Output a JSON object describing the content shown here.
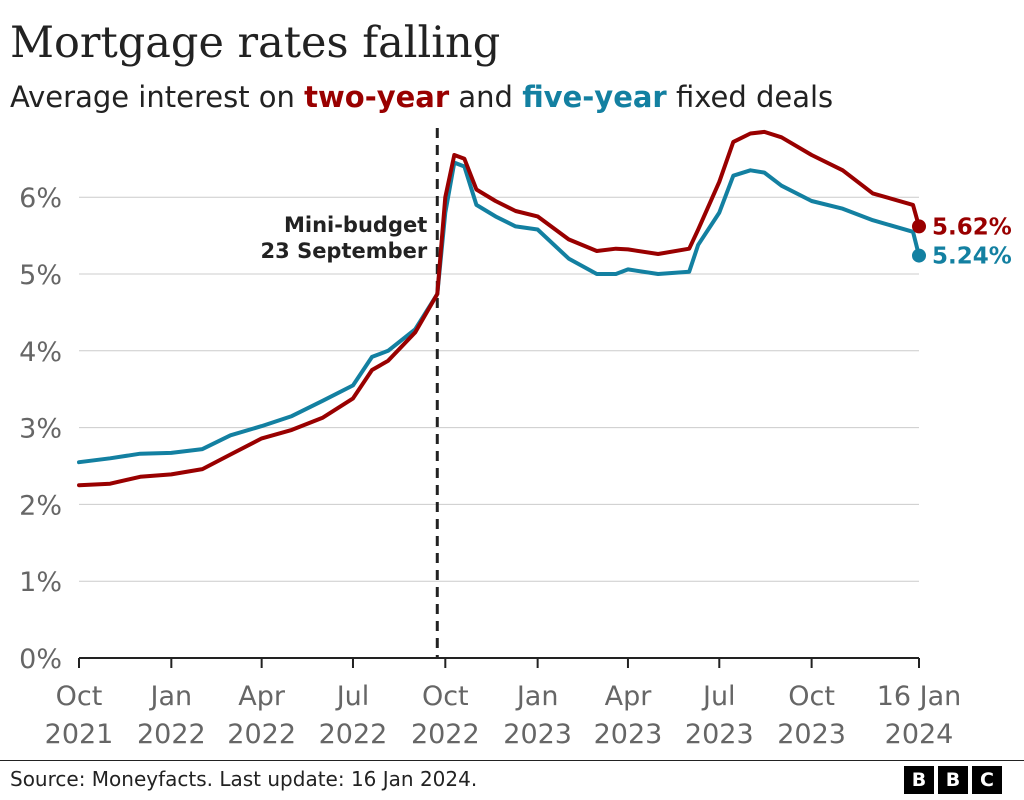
{
  "title": "Mortgage rates falling",
  "subtitle": {
    "prefix": "Average interest on ",
    "two_year": "two-year",
    "middle": " and ",
    "five_year": "five-year",
    "suffix": " fixed deals"
  },
  "source": "Source: Moneyfacts. Last update: 16 Jan 2024.",
  "logo": [
    "B",
    "B",
    "C"
  ],
  "colors": {
    "two_year": "#990000",
    "five_year": "#1380A1",
    "grid": "#cccccc",
    "axis": "#222222",
    "tick_text": "#666666"
  },
  "chart_data": {
    "type": "line",
    "title": "Mortgage rates falling",
    "ylim": [
      0,
      6.8
    ],
    "y_ticks": [
      {
        "v": 0,
        "label": "0%"
      },
      {
        "v": 1,
        "label": "1%"
      },
      {
        "v": 2,
        "label": "2%"
      },
      {
        "v": 3,
        "label": "3%"
      },
      {
        "v": 4,
        "label": "4%"
      },
      {
        "v": 5,
        "label": "5%"
      },
      {
        "v": 6,
        "label": "6%"
      }
    ],
    "x_ticks": [
      {
        "date": "2021-10-01",
        "line1": "Oct",
        "line2": "2021"
      },
      {
        "date": "2022-01-01",
        "line1": "Jan",
        "line2": "2022"
      },
      {
        "date": "2022-04-01",
        "line1": "Apr",
        "line2": "2022"
      },
      {
        "date": "2022-07-01",
        "line1": "Jul",
        "line2": "2022"
      },
      {
        "date": "2022-10-01",
        "line1": "Oct",
        "line2": "2022"
      },
      {
        "date": "2023-01-01",
        "line1": "Jan",
        "line2": "2023"
      },
      {
        "date": "2023-04-01",
        "line1": "Apr",
        "line2": "2023"
      },
      {
        "date": "2023-07-01",
        "line1": "Jul",
        "line2": "2023"
      },
      {
        "date": "2023-10-01",
        "line1": "Oct",
        "line2": "2023"
      },
      {
        "date": "2024-01-16",
        "line1": "16 Jan",
        "line2": "2024"
      }
    ],
    "annotation": {
      "date": "2022-09-23",
      "line1": "Mini-budget",
      "line2": "23 September"
    },
    "grid": true,
    "series": [
      {
        "key": "two_year",
        "color": "#990000",
        "end_label": "5.62%",
        "points": [
          [
            "2021-10-01",
            2.25
          ],
          [
            "2021-11-01",
            2.27
          ],
          [
            "2021-12-01",
            2.36
          ],
          [
            "2022-01-01",
            2.39
          ],
          [
            "2022-02-01",
            2.46
          ],
          [
            "2022-03-01",
            2.65
          ],
          [
            "2022-04-01",
            2.86
          ],
          [
            "2022-05-01",
            2.97
          ],
          [
            "2022-06-01",
            3.13
          ],
          [
            "2022-07-01",
            3.38
          ],
          [
            "2022-07-20",
            3.75
          ],
          [
            "2022-08-05",
            3.87
          ],
          [
            "2022-09-01",
            4.24
          ],
          [
            "2022-09-23",
            4.74
          ],
          [
            "2022-10-01",
            6.0
          ],
          [
            "2022-10-10",
            6.55
          ],
          [
            "2022-10-20",
            6.5
          ],
          [
            "2022-11-01",
            6.1
          ],
          [
            "2022-11-20",
            5.95
          ],
          [
            "2022-12-10",
            5.82
          ],
          [
            "2023-01-01",
            5.75
          ],
          [
            "2023-02-01",
            5.45
          ],
          [
            "2023-03-01",
            5.3
          ],
          [
            "2023-03-20",
            5.33
          ],
          [
            "2023-04-01",
            5.32
          ],
          [
            "2023-05-01",
            5.26
          ],
          [
            "2023-06-01",
            5.33
          ],
          [
            "2023-06-10",
            5.58
          ],
          [
            "2023-07-01",
            6.2
          ],
          [
            "2023-07-15",
            6.72
          ],
          [
            "2023-08-01",
            6.83
          ],
          [
            "2023-08-15",
            6.85
          ],
          [
            "2023-09-01",
            6.78
          ],
          [
            "2023-10-01",
            6.55
          ],
          [
            "2023-11-01",
            6.35
          ],
          [
            "2023-12-01",
            6.05
          ],
          [
            "2024-01-10",
            5.9
          ],
          [
            "2024-01-16",
            5.62
          ]
        ]
      },
      {
        "key": "five_year",
        "color": "#1380A1",
        "end_label": "5.24%",
        "points": [
          [
            "2021-10-01",
            2.55
          ],
          [
            "2021-11-01",
            2.6
          ],
          [
            "2021-12-01",
            2.66
          ],
          [
            "2022-01-01",
            2.67
          ],
          [
            "2022-02-01",
            2.72
          ],
          [
            "2022-03-01",
            2.9
          ],
          [
            "2022-04-01",
            3.02
          ],
          [
            "2022-05-01",
            3.15
          ],
          [
            "2022-06-01",
            3.35
          ],
          [
            "2022-07-01",
            3.55
          ],
          [
            "2022-07-20",
            3.92
          ],
          [
            "2022-08-05",
            4.0
          ],
          [
            "2022-09-01",
            4.28
          ],
          [
            "2022-09-23",
            4.74
          ],
          [
            "2022-10-01",
            5.8
          ],
          [
            "2022-10-10",
            6.45
          ],
          [
            "2022-10-20",
            6.4
          ],
          [
            "2022-11-01",
            5.9
          ],
          [
            "2022-11-20",
            5.75
          ],
          [
            "2022-12-10",
            5.62
          ],
          [
            "2023-01-01",
            5.58
          ],
          [
            "2023-02-01",
            5.2
          ],
          [
            "2023-03-01",
            5.0
          ],
          [
            "2023-03-20",
            5.0
          ],
          [
            "2023-04-01",
            5.06
          ],
          [
            "2023-05-01",
            5.0
          ],
          [
            "2023-06-01",
            5.03
          ],
          [
            "2023-06-10",
            5.38
          ],
          [
            "2023-07-01",
            5.8
          ],
          [
            "2023-07-15",
            6.28
          ],
          [
            "2023-08-01",
            6.35
          ],
          [
            "2023-08-15",
            6.32
          ],
          [
            "2023-09-01",
            6.15
          ],
          [
            "2023-10-01",
            5.95
          ],
          [
            "2023-11-01",
            5.85
          ],
          [
            "2023-12-01",
            5.7
          ],
          [
            "2024-01-10",
            5.55
          ],
          [
            "2024-01-16",
            5.24
          ]
        ]
      }
    ]
  }
}
